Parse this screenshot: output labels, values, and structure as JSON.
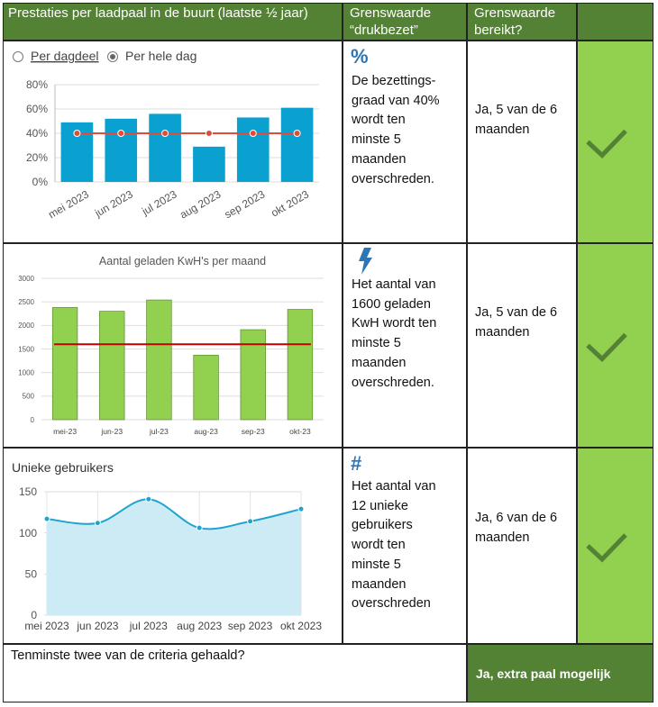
{
  "header": [
    "Prestaties per laadpaal in de buurt (laatste ½ jaar)",
    [
      "Grenswaarde",
      "“drukbezet”"
    ],
    [
      "Grenswaarde",
      "bereikt?"
    ]
  ],
  "rows": [
    {
      "chart": {
        "type": "bar",
        "options": [
          "Per dagdeel",
          "Per hele dag"
        ],
        "selected": 1,
        "categories": [
          "mei 2023",
          "jun 2023",
          "jul 2023",
          "aug 2023",
          "sep 2023",
          "okt 2023"
        ],
        "values": [
          49,
          52,
          56,
          29,
          53,
          61
        ],
        "color": "#0aa0cf",
        "line_values": [
          40,
          40,
          40,
          40,
          40,
          40
        ],
        "line_color": "#e04b3a",
        "ylim": [
          0,
          80
        ],
        "yticks": [
          {
            "value": 0,
            "label": "0%"
          },
          {
            "value": 20,
            "label": "20%"
          },
          {
            "value": 40,
            "label": "40%"
          },
          {
            "value": 60,
            "label": "60%"
          },
          {
            "value": 80,
            "label": "80%"
          }
        ],
        "grid": true
      },
      "icon": "%",
      "description": [
        "De bezettings-",
        "graad van 40%",
        "wordt ten",
        "minste 5",
        "maanden",
        "overschreden."
      ],
      "result": [
        "Ja, 5 van de 6",
        "maanden"
      ]
    },
    {
      "chart": {
        "type": "bar",
        "title": "Aantal geladen KwH's per maand",
        "categories": [
          "mei-23",
          "jun-23",
          "jul-23",
          "aug-23",
          "sep-23",
          "okt-23"
        ],
        "values": [
          2380,
          2300,
          2540,
          1370,
          1910,
          2340
        ],
        "color": "#92d050",
        "threshold": 1600,
        "line_color": "#c00000",
        "ylim": [
          0,
          3000
        ],
        "yticks": [
          0,
          500,
          1000,
          1500,
          2000,
          2500,
          3000
        ],
        "grid": true
      },
      "description": [
        "Het aantal van",
        "1600 geladen",
        "KwH  wordt ten",
        "minste 5",
        "maanden",
        "overschreden."
      ],
      "result": [
        "Ja, 5 van de 6",
        "maanden"
      ]
    },
    {
      "chart": {
        "type": "area",
        "title": "Unieke gebruikers",
        "categories": [
          "mei 2023",
          "jun 2023",
          "jul 2023",
          "aug 2023",
          "sep 2023",
          "okt 2023"
        ],
        "values": [
          117,
          112,
          141,
          106,
          114,
          129
        ],
        "color": "#1fa3d1",
        "ylim": [
          0,
          150
        ],
        "yticks": [
          0,
          50,
          100,
          150
        ],
        "grid": true
      },
      "icon": "#",
      "description": [
        "Het aantal van",
        "12 unieke",
        "gebruikers",
        "wordt ten",
        "minste 5",
        "maanden",
        "overschreden"
      ],
      "result": [
        "Ja, 6 van de 6",
        "maanden"
      ]
    }
  ],
  "footer": {
    "question": "Tenminste twee van de criteria gehaald?",
    "answer": "Ja, extra paal mogelijk"
  }
}
